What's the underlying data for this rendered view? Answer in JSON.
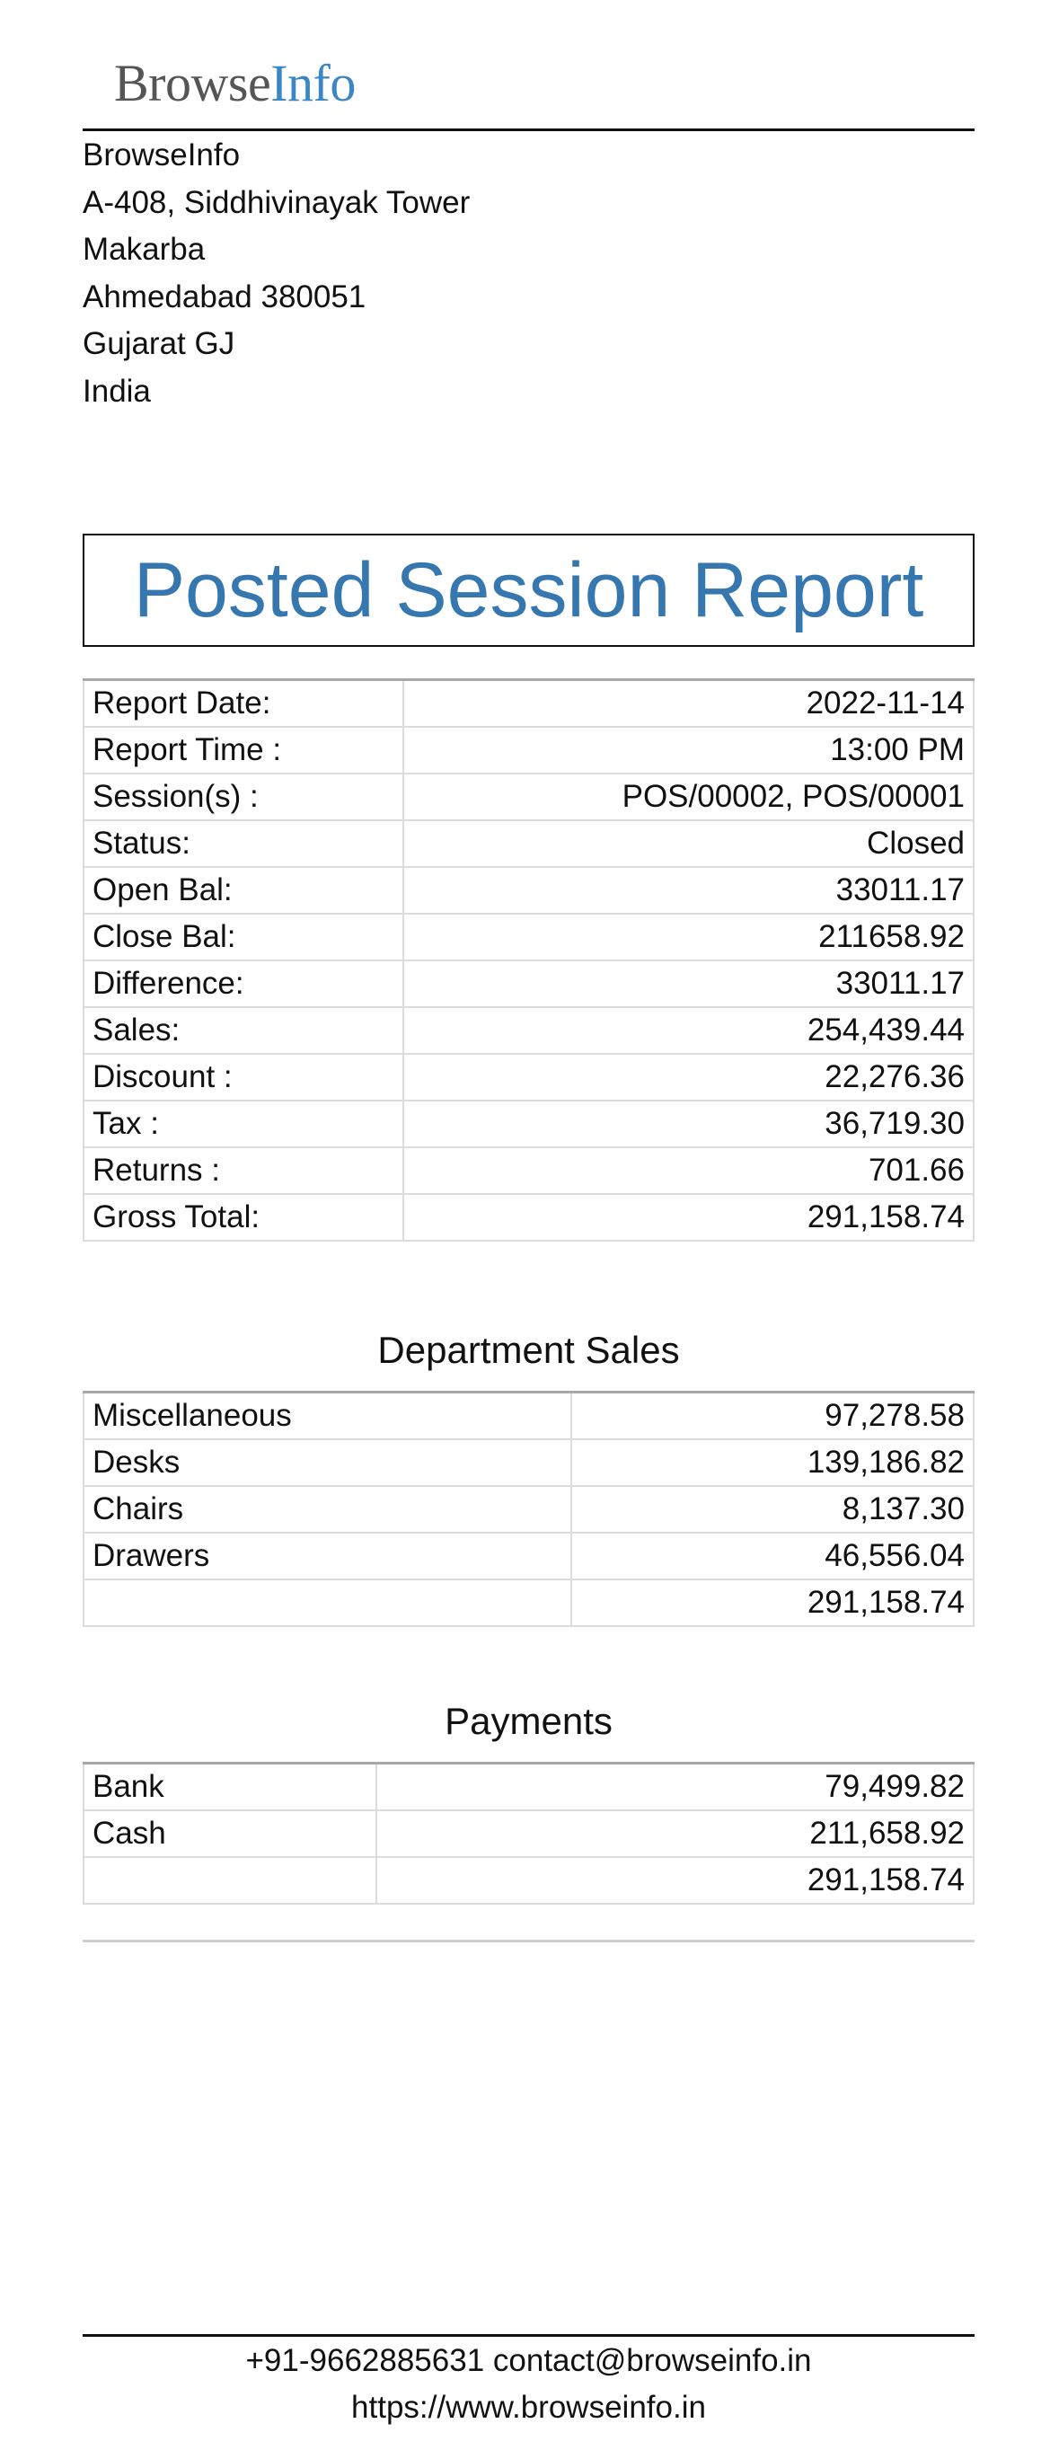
{
  "logo": {
    "part1": "Browse",
    "part2": "Info"
  },
  "company": {
    "name": "BrowseInfo",
    "address_line1": "A-408, Siddhivinayak Tower",
    "address_line2": "Makarba",
    "city_zip": "Ahmedabad 380051",
    "state": "Gujarat GJ",
    "country": "India"
  },
  "title": "Posted Session Report",
  "summary": [
    {
      "label": "Report Date:",
      "value": "2022-11-14"
    },
    {
      "label": "Report Time :",
      "value": "13:00 PM"
    },
    {
      "label": "Session(s) :",
      "value": "POS/00002, POS/00001"
    },
    {
      "label": "Status:",
      "value": "Closed"
    },
    {
      "label": "Open Bal:",
      "value": "33011.17"
    },
    {
      "label": "Close Bal:",
      "value": "211658.92"
    },
    {
      "label": "Difference:",
      "value": "33011.17"
    },
    {
      "label": "Sales:",
      "value": "254,439.44"
    },
    {
      "label": "Discount :",
      "value": "22,276.36"
    },
    {
      "label": "Tax :",
      "value": "36,719.30"
    },
    {
      "label": "Returns :",
      "value": "701.66"
    },
    {
      "label": "Gross Total:",
      "value": "291,158.74"
    }
  ],
  "department_sales": {
    "title": "Department Sales",
    "rows": [
      {
        "label": "Miscellaneous",
        "value": "97,278.58"
      },
      {
        "label": "Desks",
        "value": "139,186.82"
      },
      {
        "label": "Chairs",
        "value": "8,137.30"
      },
      {
        "label": "Drawers",
        "value": "46,556.04"
      },
      {
        "label": "",
        "value": "291,158.74"
      }
    ]
  },
  "payments": {
    "title": "Payments",
    "rows": [
      {
        "label": "Bank",
        "value": "79,499.82"
      },
      {
        "label": "Cash",
        "value": "211,658.92"
      },
      {
        "label": "",
        "value": "291,158.74"
      }
    ]
  },
  "footer": {
    "phone": "+91-9662885631",
    "email": "contact@browseinfo.in",
    "website": "https://www.browseinfo.in"
  }
}
